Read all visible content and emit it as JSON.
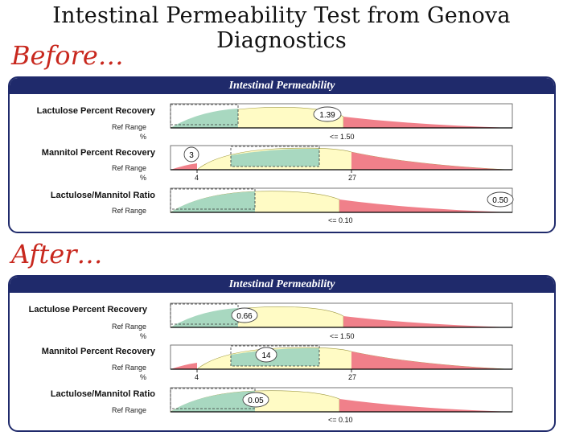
{
  "title": "Intestinal Permeability Test from Genova Diagnostics",
  "before_label": "Before…",
  "after_label": "After…",
  "colors": {
    "panel_border": "#1f2a6b",
    "green": "#a8d8c0",
    "yellow": "#fffbc5",
    "red": "#f0808a",
    "script": "#c8281e"
  },
  "panels": [
    {
      "header": "Intestinal Permeability",
      "rows": [
        {
          "label": "Lactulose Percent Recovery",
          "ref_label": "Ref Range",
          "unit": "%",
          "value": "1.39",
          "ticks": [
            "<= 1.50"
          ]
        },
        {
          "label": "Mannitol Percent Recovery",
          "ref_label": "Ref Range",
          "unit": "%",
          "value": "3",
          "ticks": [
            "4",
            "27"
          ]
        },
        {
          "label": "Lactulose/Mannitol Ratio",
          "ref_label": "Ref Range",
          "unit": "",
          "value": "0.50",
          "ticks": [
            "<= 0.10"
          ]
        }
      ]
    },
    {
      "header": "Intestinal Permeability",
      "rows": [
        {
          "label": "Lactulose Percent Recovery",
          "ref_label": "Ref Range",
          "unit": "%",
          "value": "0.66",
          "ticks": [
            "<= 1.50"
          ]
        },
        {
          "label": "Mannitol Percent Recovery",
          "ref_label": "Ref Range",
          "unit": "%",
          "value": "14",
          "ticks": [
            "4",
            "27"
          ]
        },
        {
          "label": "Lactulose/Mannitol Ratio",
          "ref_label": "Ref Range",
          "unit": "",
          "value": "0.05",
          "ticks": [
            "<= 0.10"
          ]
        }
      ]
    }
  ]
}
